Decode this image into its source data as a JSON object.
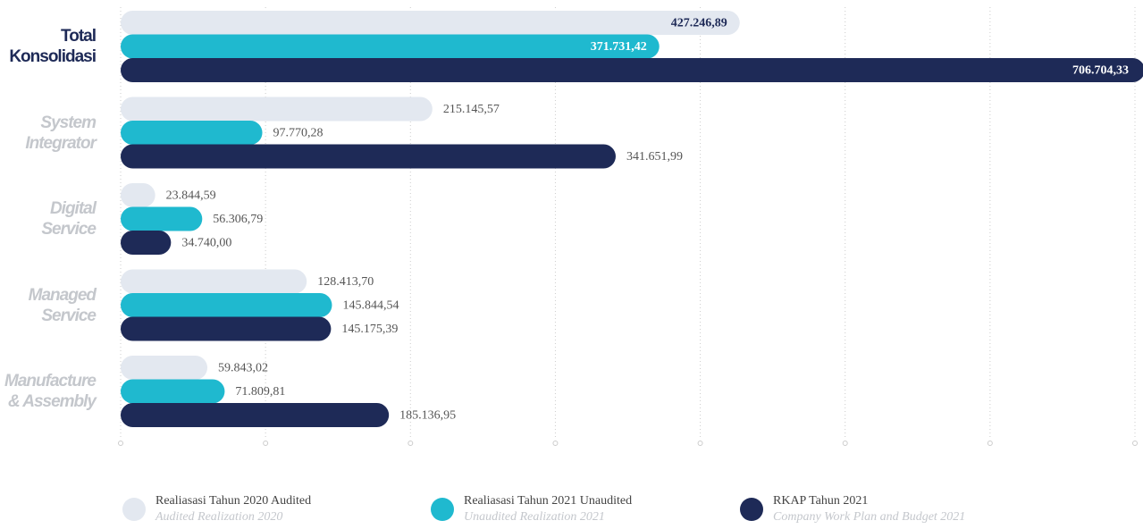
{
  "chart_data": {
    "type": "bar",
    "orientation": "horizontal",
    "categories": [
      "Total\nKonsolidasi",
      "System\nIntegrator",
      "Digital\nService",
      "Managed\nService",
      "Manufacture\n& Assembly"
    ],
    "series": [
      {
        "name": "Realiasasi Tahun 2020 Audited",
        "name_en": "Audited Realization 2020",
        "color": "#e3e8f0",
        "values": [
          427246.89,
          215145.57,
          23844.59,
          128413.7,
          59843.02
        ],
        "value_labels": [
          "427.246,89",
          "215.145,57",
          "23.844,59",
          "128.413,70",
          "59.843,02"
        ]
      },
      {
        "name": "Realiasasi Tahun 2021 Unaudited",
        "name_en": "Unaudited Realization 2021",
        "color": "#1fb9cf",
        "values": [
          371731.42,
          97770.28,
          56306.79,
          145844.54,
          71809.81
        ],
        "value_labels": [
          "371.731,42",
          "97.770,28",
          "56.306,79",
          "145.844,54",
          "71.809,81"
        ]
      },
      {
        "name": "RKAP Tahun 2021",
        "name_en": "Company Work Plan and Budget 2021",
        "color": "#1e2a57",
        "values": [
          706704.33,
          341651.99,
          34740.0,
          145175.39,
          185136.95
        ],
        "value_labels": [
          "706.704,33",
          "341.651,99",
          "34.740,00",
          "145.175,39",
          "185.136,95"
        ]
      }
    ],
    "xlim": [
      0,
      700000
    ],
    "xticks": [
      0,
      100000,
      200000,
      300000,
      400000,
      500000,
      600000,
      700000
    ],
    "grid": true
  }
}
